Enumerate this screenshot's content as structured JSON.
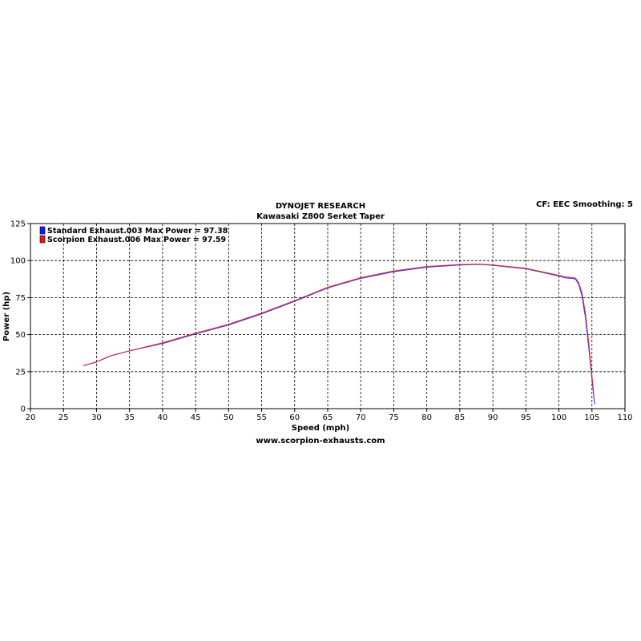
{
  "header": {
    "title": "DYNOJET RESEARCH",
    "subtitle": "Kawasaki Z800 Serket Taper",
    "settings": "CF: EEC  Smoothing: 5"
  },
  "footer": {
    "url": "www.scorpion-exhausts.com"
  },
  "chart_data": {
    "type": "line",
    "xlabel": "Speed (mph)",
    "ylabel": "Power (hp)",
    "xlim": [
      20,
      110
    ],
    "ylim": [
      0,
      125
    ],
    "x_ticks": [
      "20",
      "25",
      "30",
      "35",
      "40",
      "45",
      "50",
      "55",
      "60",
      "65",
      "70",
      "75",
      "80",
      "85",
      "90",
      "95",
      "100",
      "105",
      "110"
    ],
    "y_ticks": [
      "0",
      "25",
      "50",
      "75",
      "100",
      "125"
    ],
    "grid": true,
    "legend_position": "top-left",
    "series": [
      {
        "name": "Standard Exhaust.003 Max Power = 97.38",
        "color": "#1a1aff",
        "points": [
          [
            28,
            29
          ],
          [
            30,
            31.5
          ],
          [
            32,
            35.5
          ],
          [
            35,
            39
          ],
          [
            40,
            44
          ],
          [
            45,
            50.5
          ],
          [
            50,
            56.5
          ],
          [
            55,
            64
          ],
          [
            60,
            72.5
          ],
          [
            65,
            81.5
          ],
          [
            70,
            88
          ],
          [
            75,
            92.5
          ],
          [
            80,
            95.5
          ],
          [
            85,
            97
          ],
          [
            88,
            97.4
          ],
          [
            90,
            96.8
          ],
          [
            95,
            94.5
          ],
          [
            100,
            89.5
          ],
          [
            101,
            88.3
          ],
          [
            102,
            88
          ],
          [
            102.5,
            87.5
          ],
          [
            103,
            84
          ],
          [
            103.5,
            76
          ],
          [
            104,
            62
          ],
          [
            104.5,
            42
          ],
          [
            105,
            20
          ],
          [
            105.4,
            3
          ]
        ]
      },
      {
        "name": "Scorpion Exhaust.006 Max Power = 97.59",
        "color": "#e02020",
        "points": [
          [
            28,
            29
          ],
          [
            30,
            31.5
          ],
          [
            32,
            35.5
          ],
          [
            35,
            39
          ],
          [
            40,
            44.5
          ],
          [
            45,
            51
          ],
          [
            50,
            57
          ],
          [
            55,
            64.5
          ],
          [
            60,
            73
          ],
          [
            65,
            82
          ],
          [
            70,
            88.5
          ],
          [
            75,
            93
          ],
          [
            80,
            96
          ],
          [
            85,
            97.3
          ],
          [
            88,
            97.6
          ],
          [
            90,
            97
          ],
          [
            95,
            94.8
          ],
          [
            100,
            90
          ],
          [
            101,
            89
          ],
          [
            102,
            88.6
          ],
          [
            102.5,
            88.2
          ],
          [
            103,
            85
          ],
          [
            103.5,
            78
          ],
          [
            104,
            65
          ],
          [
            104.5,
            45
          ],
          [
            105,
            22
          ],
          [
            105.3,
            8
          ]
        ]
      }
    ]
  }
}
